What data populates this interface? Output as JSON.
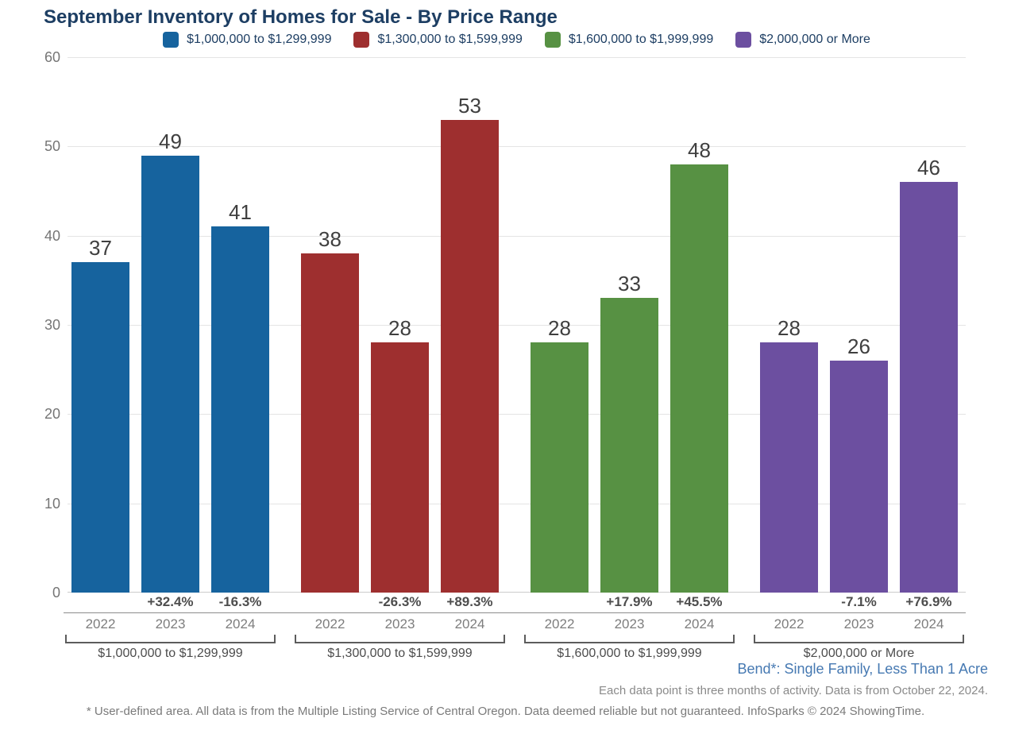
{
  "chart_data": {
    "type": "bar",
    "title": "September Inventory of Homes for Sale - By Price Range",
    "xlabel": "",
    "ylabel": "",
    "ylim": [
      0,
      60
    ],
    "yticks": [
      0,
      10,
      20,
      30,
      40,
      50,
      60
    ],
    "grid": "horizontal",
    "legend_position": "top",
    "categories": [
      "2022",
      "2023",
      "2024"
    ],
    "series": [
      {
        "name": "$1,000,000 to $1,299,999",
        "color": "#16639e",
        "values": [
          37,
          49,
          41
        ],
        "pct_change": [
          null,
          "+32.4%",
          "-16.3%"
        ]
      },
      {
        "name": "$1,300,000 to $1,599,999",
        "color": "#9e2f2f",
        "values": [
          38,
          28,
          53
        ],
        "pct_change": [
          null,
          "-26.3%",
          "+89.3%"
        ]
      },
      {
        "name": "$1,600,000 to $1,999,999",
        "color": "#579143",
        "values": [
          28,
          33,
          48
        ],
        "pct_change": [
          null,
          "+17.9%",
          "+45.5%"
        ]
      },
      {
        "name": "$2,000,000 or More",
        "color": "#6c4fa0",
        "values": [
          28,
          26,
          46
        ],
        "pct_change": [
          null,
          "-7.1%",
          "+76.9%"
        ]
      }
    ]
  },
  "footer": {
    "area_label": "Bend*: Single Family, Less Than 1 Acre",
    "data_note": "Each data point is three months of activity. Data is from October 22, 2024.",
    "disclaimer": "* User-defined area. All data is from the Multiple Listing Service of Central Oregon. Data deemed reliable but not guaranteed. InfoSparks © 2024 ShowingTime."
  }
}
